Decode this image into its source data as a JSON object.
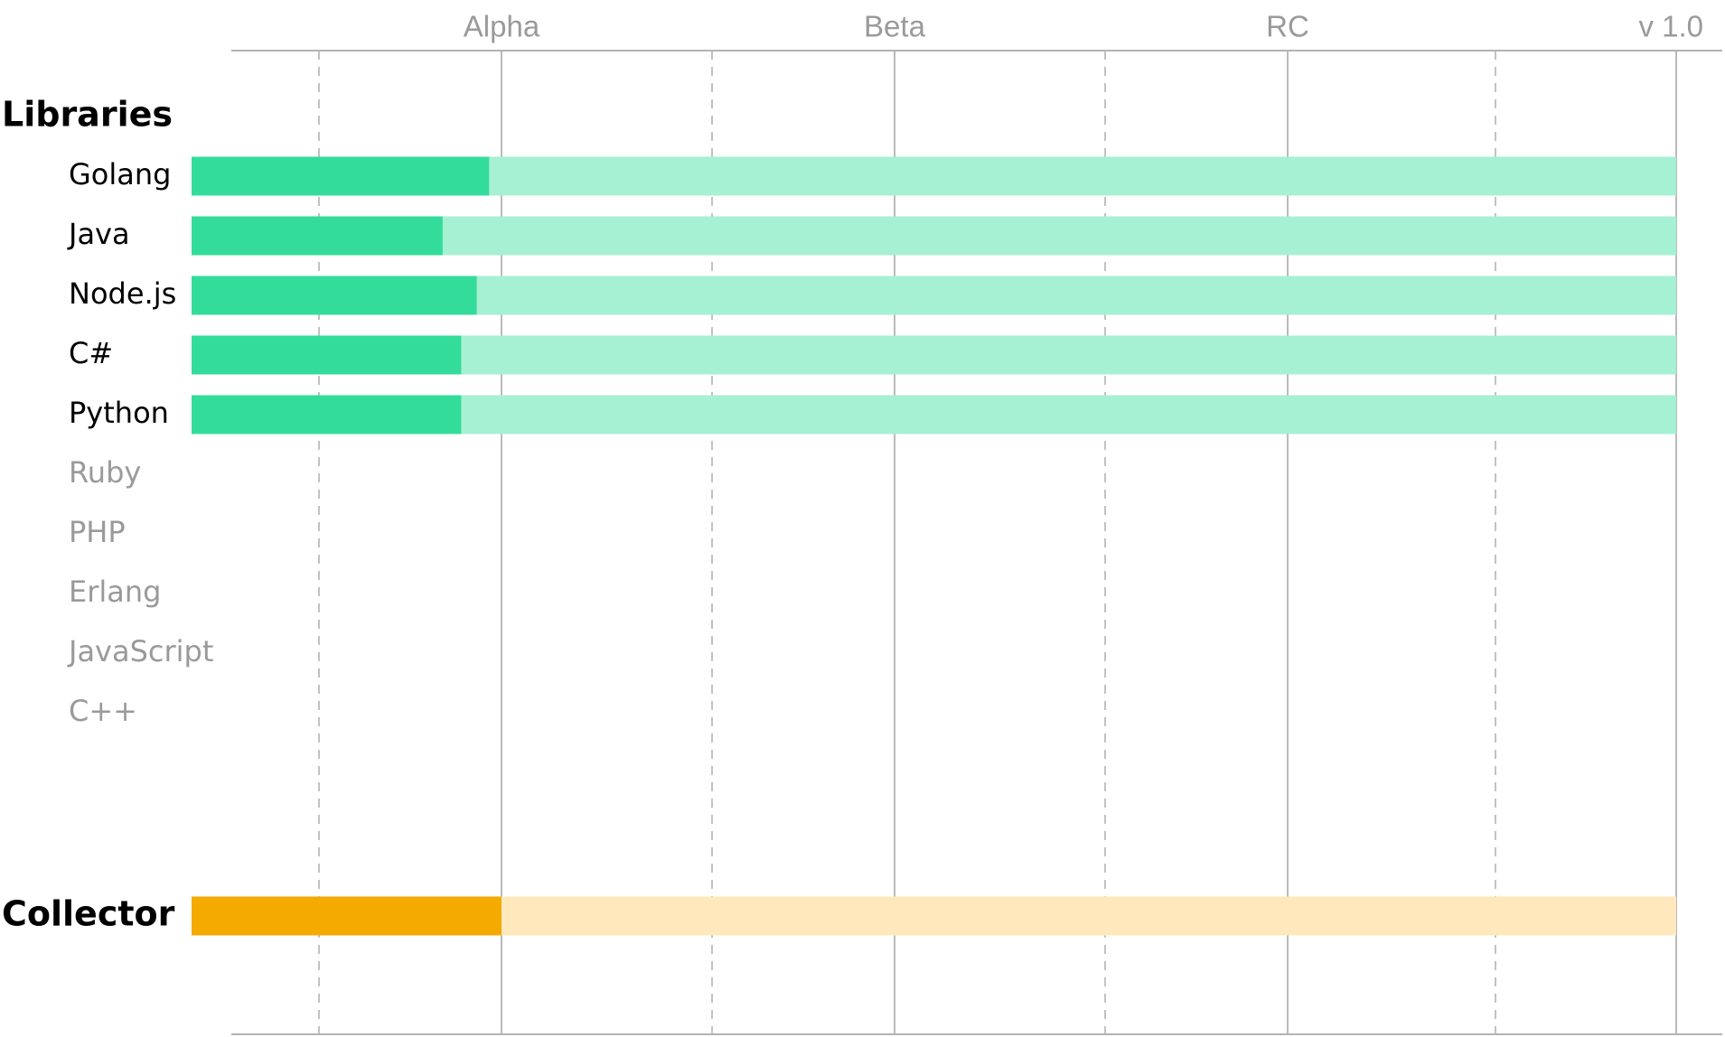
{
  "chart_data": {
    "type": "bar",
    "stage_labels": [
      "Alpha",
      "Beta",
      "RC",
      "v 1.0"
    ],
    "colors": {
      "libraries_done": "#33dc9b",
      "libraries_remaining": "#a6f0d3",
      "collector_done": "#f5aa00",
      "collector_remaining": "#fee8bc",
      "active_text": "#000000",
      "inactive_text": "#9a9a9a",
      "solid_grid": "#b3b3b3",
      "dashed_grid": "#b3b3b3"
    },
    "sections": [
      {
        "name": "Libraries",
        "rows": [
          {
            "label": "Golang",
            "progress": 0.96,
            "active": true
          },
          {
            "label": "Java",
            "progress": 0.81,
            "active": true
          },
          {
            "label": "Node.js",
            "progress": 0.92,
            "active": true
          },
          {
            "label": "C#",
            "progress": 0.87,
            "active": true
          },
          {
            "label": "Python",
            "progress": 0.87,
            "active": true
          },
          {
            "label": "Ruby",
            "progress": null,
            "active": false
          },
          {
            "label": "PHP",
            "progress": null,
            "active": false
          },
          {
            "label": "Erlang",
            "progress": null,
            "active": false
          },
          {
            "label": "JavaScript",
            "progress": null,
            "active": false
          },
          {
            "label": "C++",
            "progress": null,
            "active": false
          }
        ]
      },
      {
        "name": "Collector",
        "rows": [
          {
            "label": "",
            "progress": 1.0,
            "active": true
          }
        ]
      }
    ],
    "x_range": [
      0,
      4
    ],
    "grid": true
  }
}
